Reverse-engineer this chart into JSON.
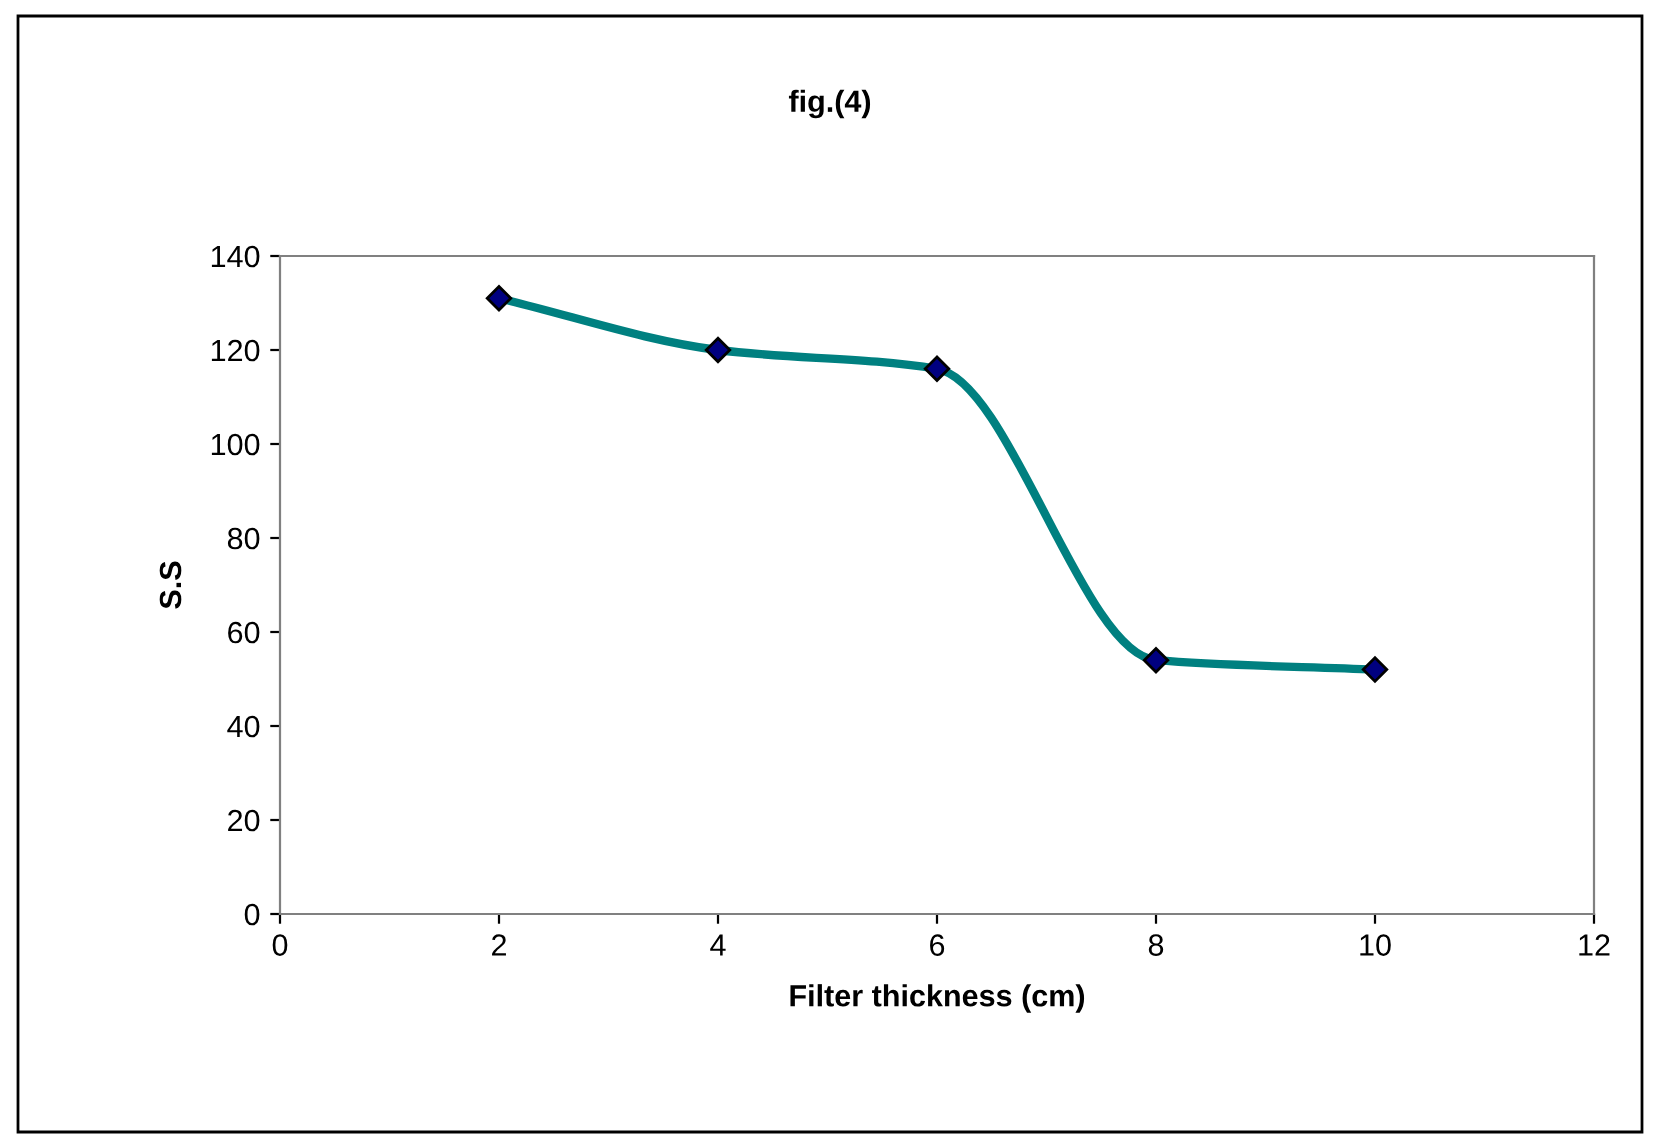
{
  "chart_data": {
    "type": "line",
    "title": "fig.(4)",
    "xlabel": "Filter thickness (cm)",
    "ylabel": "S.S",
    "series": [
      {
        "color": "#008080",
        "x": [
          2,
          4,
          6,
          8,
          10
        ],
        "values": [
          131,
          120,
          116,
          54,
          52
        ]
      }
    ],
    "xlim": [
      0,
      12
    ],
    "xticks": [
      0,
      2,
      4,
      6,
      8,
      10,
      12
    ],
    "ylim": [
      0,
      140
    ],
    "yticks": [
      0,
      20,
      40,
      60,
      80,
      100,
      120,
      140
    ],
    "marker": "diamond",
    "grid": false
  }
}
